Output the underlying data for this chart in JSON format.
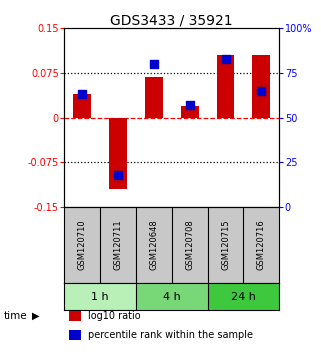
{
  "title": "GDS3433 / 35921",
  "samples": [
    "GSM120710",
    "GSM120711",
    "GSM120648",
    "GSM120708",
    "GSM120715",
    "GSM120716"
  ],
  "log10_ratio": [
    0.04,
    -0.12,
    0.068,
    0.02,
    0.105,
    0.105
  ],
  "percentile_rank": [
    63,
    18,
    80,
    57,
    83,
    65
  ],
  "groups": [
    {
      "label": "1 h",
      "indices": [
        0,
        1
      ],
      "color": "#b8f0b8"
    },
    {
      "label": "4 h",
      "indices": [
        2,
        3
      ],
      "color": "#78d878"
    },
    {
      "label": "24 h",
      "indices": [
        4,
        5
      ],
      "color": "#3ec83e"
    }
  ],
  "bar_color": "#cc0000",
  "square_color": "#0000cc",
  "ylim_left": [
    -0.15,
    0.15
  ],
  "ylim_right": [
    0,
    100
  ],
  "yticks_left": [
    -0.15,
    -0.075,
    0,
    0.075,
    0.15
  ],
  "yticks_right": [
    0,
    25,
    50,
    75,
    100
  ],
  "ytick_labels_left": [
    "-0.15",
    "-0.075",
    "0",
    "0.075",
    "0.15"
  ],
  "ytick_labels_right": [
    "0",
    "25",
    "50",
    "75",
    "100%"
  ],
  "hlines": [
    0.075,
    0,
    -0.075
  ],
  "hline_styles": [
    "dotted",
    "dashed",
    "dotted"
  ],
  "hline_colors": [
    "black",
    "red",
    "black"
  ],
  "bar_width": 0.5,
  "square_size": 28,
  "time_label": "time",
  "legend_items": [
    {
      "color": "#cc0000",
      "label": "log10 ratio"
    },
    {
      "color": "#0000cc",
      "label": "percentile rank within the sample"
    }
  ],
  "bg_color_label": "#c8c8c8",
  "title_fontsize": 10,
  "tick_fontsize": 7,
  "sample_fontsize": 6,
  "group_fontsize": 8,
  "legend_fontsize": 7
}
